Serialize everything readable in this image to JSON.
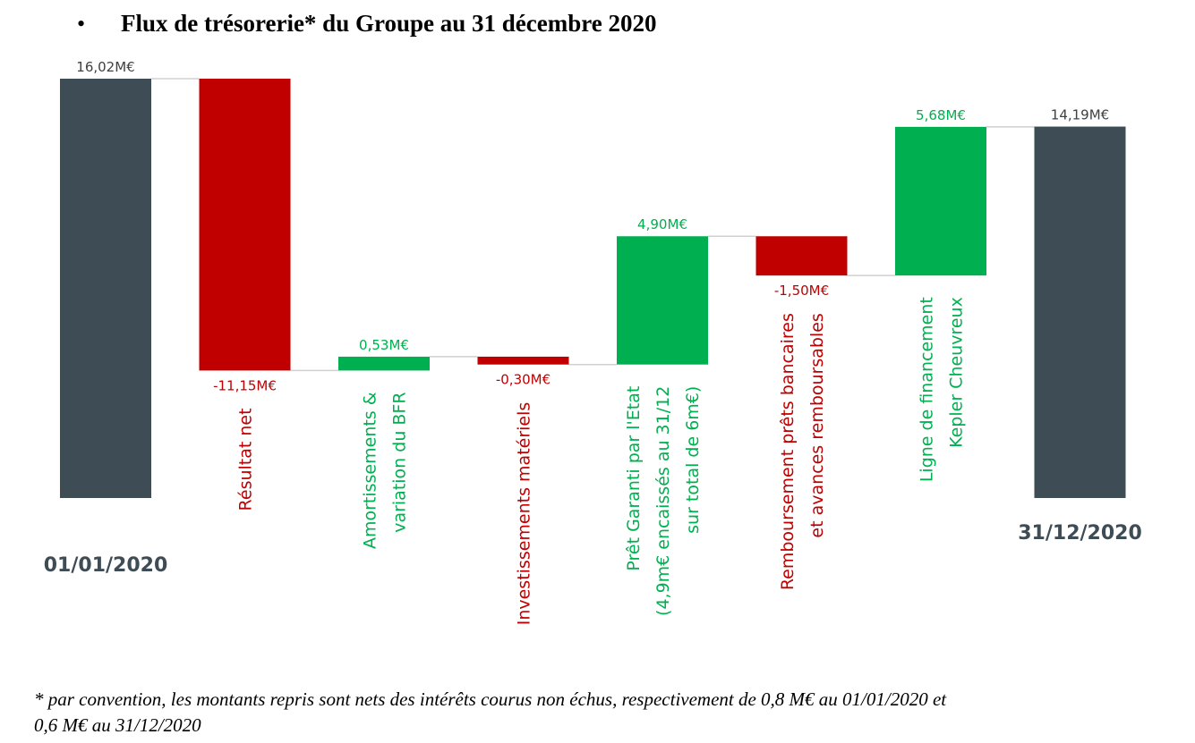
{
  "chart_data": {
    "type": "waterfall",
    "title": "Flux de trésorerie* du Groupe au 31 décembre 2020",
    "categories": [
      [
        "01/01/2020"
      ],
      [
        "Résultat net"
      ],
      [
        "Amortissements &",
        "variation du BFR"
      ],
      [
        "Investissements matériels"
      ],
      [
        "Prêt Garanti par l'Etat",
        "(4,9m€ encaissés au 31/12",
        "sur total de 6m€)"
      ],
      [
        "Remboursement prêts bancaires",
        "et avances remboursables"
      ],
      [
        "Ligne de financement",
        "Kepler Cheuvreux"
      ],
      [
        "31/12/2020"
      ]
    ],
    "kinds": [
      "total",
      "delta",
      "delta",
      "delta",
      "delta",
      "delta",
      "delta",
      "total"
    ],
    "values": [
      16.02,
      -11.15,
      0.53,
      -0.3,
      4.9,
      -1.5,
      5.68,
      14.19
    ],
    "value_labels": [
      "16,02M€",
      "-11,15M€",
      "0,53M€",
      "-0,30M€",
      "4,90M€",
      "-1,50M€",
      "5,68M€",
      "14,19M€"
    ],
    "colors": {
      "total": "#3e4c56",
      "increase": "#00b050",
      "decrease": "#c00000"
    },
    "footnote": [
      "* par convention, les montants repris sont nets des intérêts courus non échus, respectivement de 0,8 M€ au 01/01/2020 et",
      "0,6 M€ au 31/12/2020"
    ]
  }
}
